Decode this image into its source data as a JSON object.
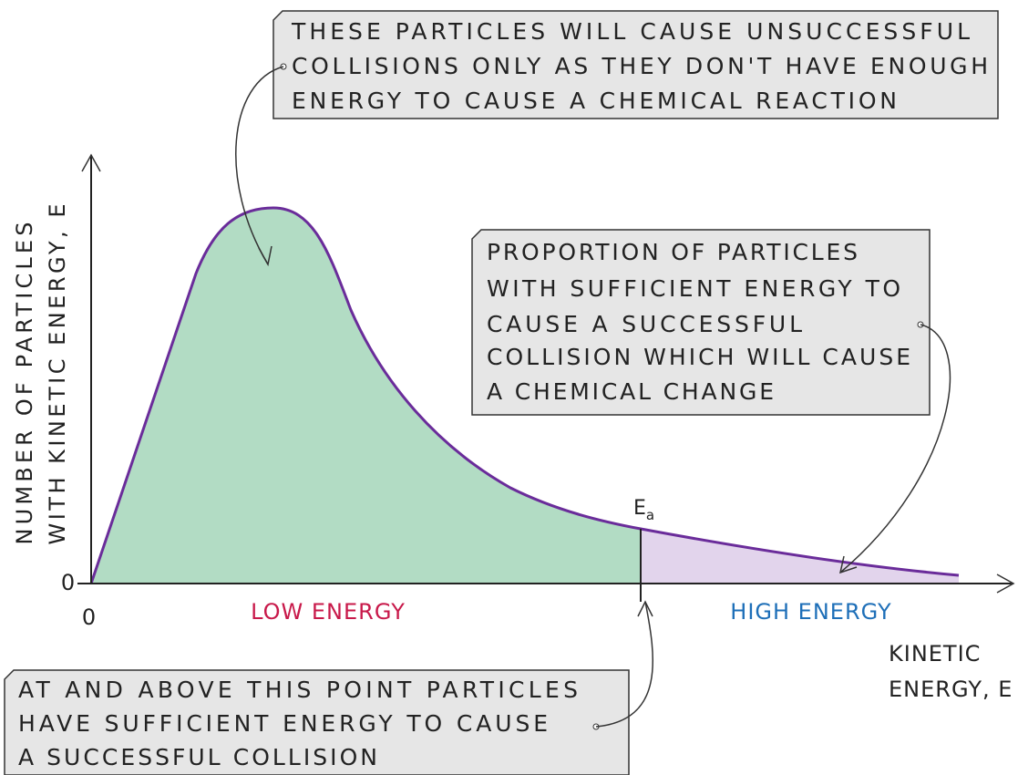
{
  "callouts": [
    {
      "lines": [
        "THESE PARTICLES WILL CAUSE UNSUCCESSFUL",
        "COLLISIONS ONLY AS THEY DON'T HAVE ENOUGH",
        "ENERGY  TO CAUSE A CHEMICAL REACTION"
      ]
    },
    {
      "lines": [
        "PROPORTION OF PARTICLES",
        "WITH SUFFICIENT ENERGY TO",
        "CAUSE A SUCCESSFUL",
        "COLLISION WHICH WILL CAUSE",
        "A CHEMICAL CHANGE"
      ]
    },
    {
      "lines": [
        "AT AND ABOVE THIS POINT PARTICLES",
        "HAVE SUFFICIENT ENERGY TO CAUSE",
        "A SUCCESSFUL COLLISION"
      ]
    }
  ],
  "axes": {
    "y_label": [
      "NUMBER OF PARTICLES",
      "WITH KINETIC ENERGY, E"
    ],
    "x_label": [
      "KINETIC",
      "ENERGY, E"
    ],
    "y_origin": "0",
    "x_origin": "0"
  },
  "regions": {
    "low": "LOW ENERGY",
    "high": "HIGH ENERGY"
  },
  "activation_energy": {
    "symbol": "E",
    "subscript": "a"
  }
}
